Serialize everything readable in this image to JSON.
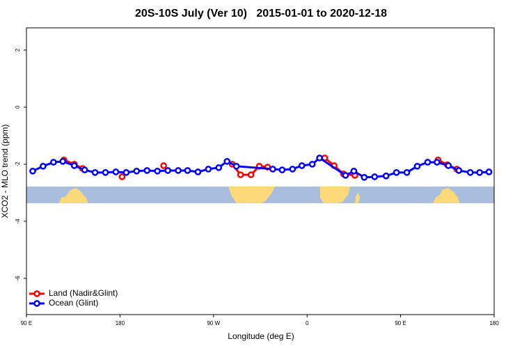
{
  "chart_data": {
    "type": "line",
    "title": "20S-10S July (Ver 10)   2015-01-01 to 2020-12-18",
    "x_label": "Longitude (deg E)",
    "y_label": "XCO2 - MLO trend (ppm)",
    "xlim": [
      90,
      540
    ],
    "xticks": [
      {
        "value": 90,
        "label": "90 E"
      },
      {
        "value": 180,
        "label": "180"
      },
      {
        "value": 270,
        "label": "90 W"
      },
      {
        "value": 360,
        "label": "0"
      },
      {
        "value": 450,
        "label": "90 E"
      },
      {
        "value": 540,
        "label": "180"
      }
    ],
    "ylim": [
      -7.27,
      2.78
    ],
    "yticks": [
      2,
      0,
      -2,
      -4,
      -6
    ],
    "legend": "bottom-left",
    "series": [
      {
        "name": "Land (Nadir&Glint)",
        "color": "#ff0000",
        "x": [
          126,
          136,
          144,
          null,
          182,
          null,
          222,
          null,
          288,
          296,
          306,
          314,
          322,
          null,
          377,
          386,
          395,
          406,
          null,
          486,
          495,
          504
        ],
        "values": [
          -1.85,
          -2.0,
          -2.15,
          null,
          -2.44,
          null,
          -2.05,
          null,
          -2.0,
          -2.37,
          -2.37,
          -2.07,
          -2.1,
          null,
          -1.78,
          -2.05,
          -2.34,
          -2.39,
          null,
          -1.85,
          -2.02,
          -2.17
        ]
      },
      {
        "name": "Ocean (Glint)",
        "color": "#0000ff",
        "x": [
          96,
          106,
          116,
          125,
          136,
          146,
          156,
          166,
          176,
          186,
          196,
          206,
          216,
          226,
          236,
          245,
          255,
          265,
          275,
          283,
          292,
          327,
          336,
          346,
          355,
          365,
          372,
          397,
          405,
          415,
          425,
          436,
          446,
          456,
          466,
          476,
          485,
          496,
          506,
          517,
          526,
          535
        ],
        "values": [
          -2.24,
          -2.07,
          -1.93,
          -1.9,
          -2.05,
          -2.2,
          -2.29,
          -2.29,
          -2.27,
          -2.29,
          -2.24,
          -2.22,
          -2.24,
          -2.22,
          -2.22,
          -2.22,
          -2.27,
          -2.17,
          -2.12,
          -1.9,
          -2.07,
          -2.17,
          -2.2,
          -2.17,
          -2.05,
          -2.0,
          -1.78,
          -2.39,
          -2.24,
          -2.46,
          -2.44,
          -2.41,
          -2.29,
          -2.29,
          -2.07,
          -1.93,
          -1.93,
          -2.05,
          -2.22,
          -2.29,
          -2.29,
          -2.27
        ]
      }
    ]
  }
}
